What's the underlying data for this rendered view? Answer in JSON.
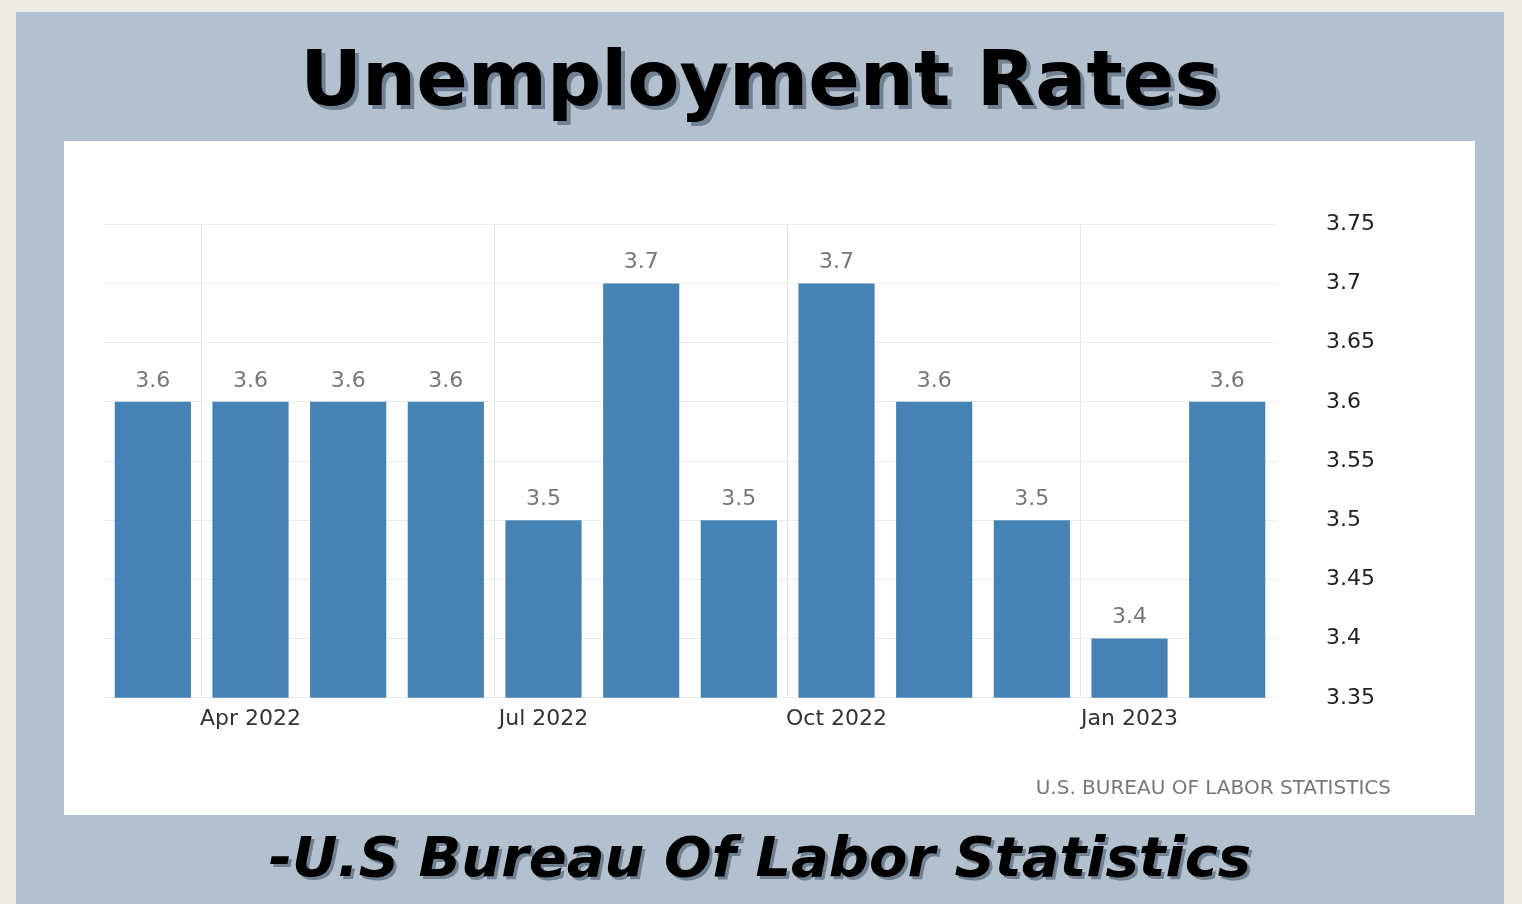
{
  "chart_data": {
    "type": "bar",
    "title": "Unemployment Rates",
    "categories": [
      null,
      "Apr 2022",
      null,
      null,
      "Jul 2022",
      null,
      null,
      "Oct 2022",
      null,
      null,
      "Jan 2023",
      null
    ],
    "values": [
      3.6,
      3.6,
      3.6,
      3.6,
      3.5,
      3.7,
      3.5,
      3.7,
      3.6,
      3.5,
      3.4,
      3.6
    ],
    "color": "#4682b4",
    "data_labels": true,
    "grid": true,
    "legend": false,
    "ylim": [
      3.35,
      3.75
    ],
    "yticks": [
      3.35,
      3.4,
      3.45,
      3.5,
      3.55,
      3.6,
      3.65,
      3.7,
      3.75
    ],
    "annotations": [
      "U.S. BUREAU OF LABOR STATISTICS",
      "-U.S Bureau Of Labor Statistics"
    ]
  }
}
